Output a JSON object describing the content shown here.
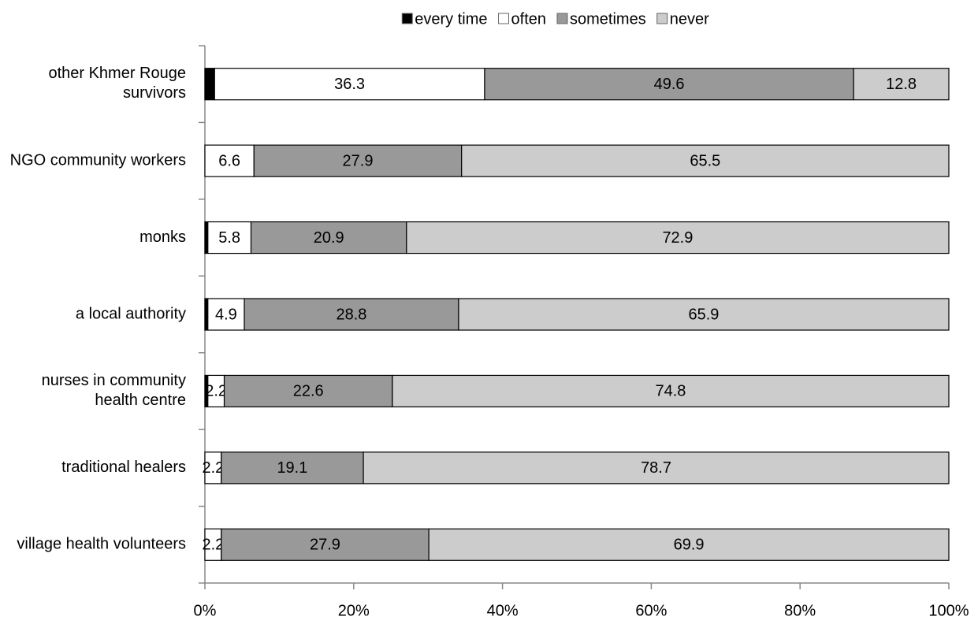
{
  "chart_data": {
    "type": "stacked-bar-horizontal",
    "categories": [
      "other Khmer Rouge survivors",
      "NGO community workers",
      "monks",
      "a local authority",
      "nurses in community health centre",
      "traditional healers",
      "village health volunteers"
    ],
    "series": [
      {
        "name": "every time",
        "color": "#000000",
        "labels": false,
        "values": [
          1.3,
          0,
          0.4,
          0.4,
          0.4,
          0,
          0
        ]
      },
      {
        "name": "often",
        "color": "#ffffff",
        "label_color": "#000000",
        "values": [
          36.3,
          6.6,
          5.8,
          4.9,
          2.2,
          2.2,
          2.2
        ]
      },
      {
        "name": "sometimes",
        "color": "#999999",
        "label_color": "#ffffff",
        "values": [
          49.6,
          27.9,
          20.9,
          28.8,
          22.6,
          19.1,
          27.9
        ]
      },
      {
        "name": "never",
        "color": "#cccccc",
        "label_color": "#000000",
        "values": [
          12.8,
          65.5,
          72.9,
          65.9,
          74.8,
          78.7,
          69.9
        ]
      }
    ],
    "xlim": [
      0,
      100
    ],
    "xticks": [
      {
        "value": 0,
        "label": "0%"
      },
      {
        "value": 20,
        "label": "20%"
      },
      {
        "value": 40,
        "label": "40%"
      },
      {
        "value": 60,
        "label": "60%"
      },
      {
        "value": 80,
        "label": "80%"
      },
      {
        "value": 100,
        "label": "100%"
      }
    ],
    "legend": "top"
  }
}
